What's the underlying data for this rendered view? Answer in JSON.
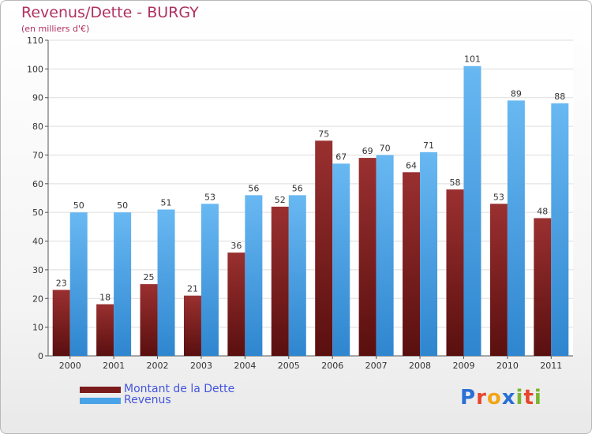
{
  "chart_data": {
    "type": "bar",
    "title": "Revenus/Dette - BURGY",
    "subtitle": "(en milliers d'€)",
    "categories": [
      "2000",
      "2001",
      "2002",
      "2003",
      "2004",
      "2005",
      "2006",
      "2007",
      "2008",
      "2009",
      "2010",
      "2011"
    ],
    "series": [
      {
        "name": "Montant de la Dette",
        "values": [
          23,
          18,
          25,
          21,
          36,
          52,
          75,
          69,
          64,
          58,
          53,
          48
        ],
        "color": "#7a1a1a"
      },
      {
        "name": "Revenus",
        "values": [
          50,
          50,
          51,
          53,
          56,
          56,
          67,
          70,
          71,
          101,
          89,
          88
        ],
        "color": "#4aa3e8"
      }
    ],
    "ylim": [
      0,
      110
    ],
    "yticks": [
      0,
      10,
      20,
      30,
      40,
      50,
      60,
      70,
      80,
      90,
      100,
      110
    ],
    "grid": true,
    "legend": "bottom-left"
  },
  "logo": {
    "letters": [
      "P",
      "r",
      "o",
      "x",
      "i",
      "t",
      "i"
    ],
    "colors": [
      "#2a6fd6",
      "#e8452c",
      "#f2a516",
      "#2a6fd6",
      "#7ab52f",
      "#e8452c",
      "#7ab52f"
    ]
  }
}
